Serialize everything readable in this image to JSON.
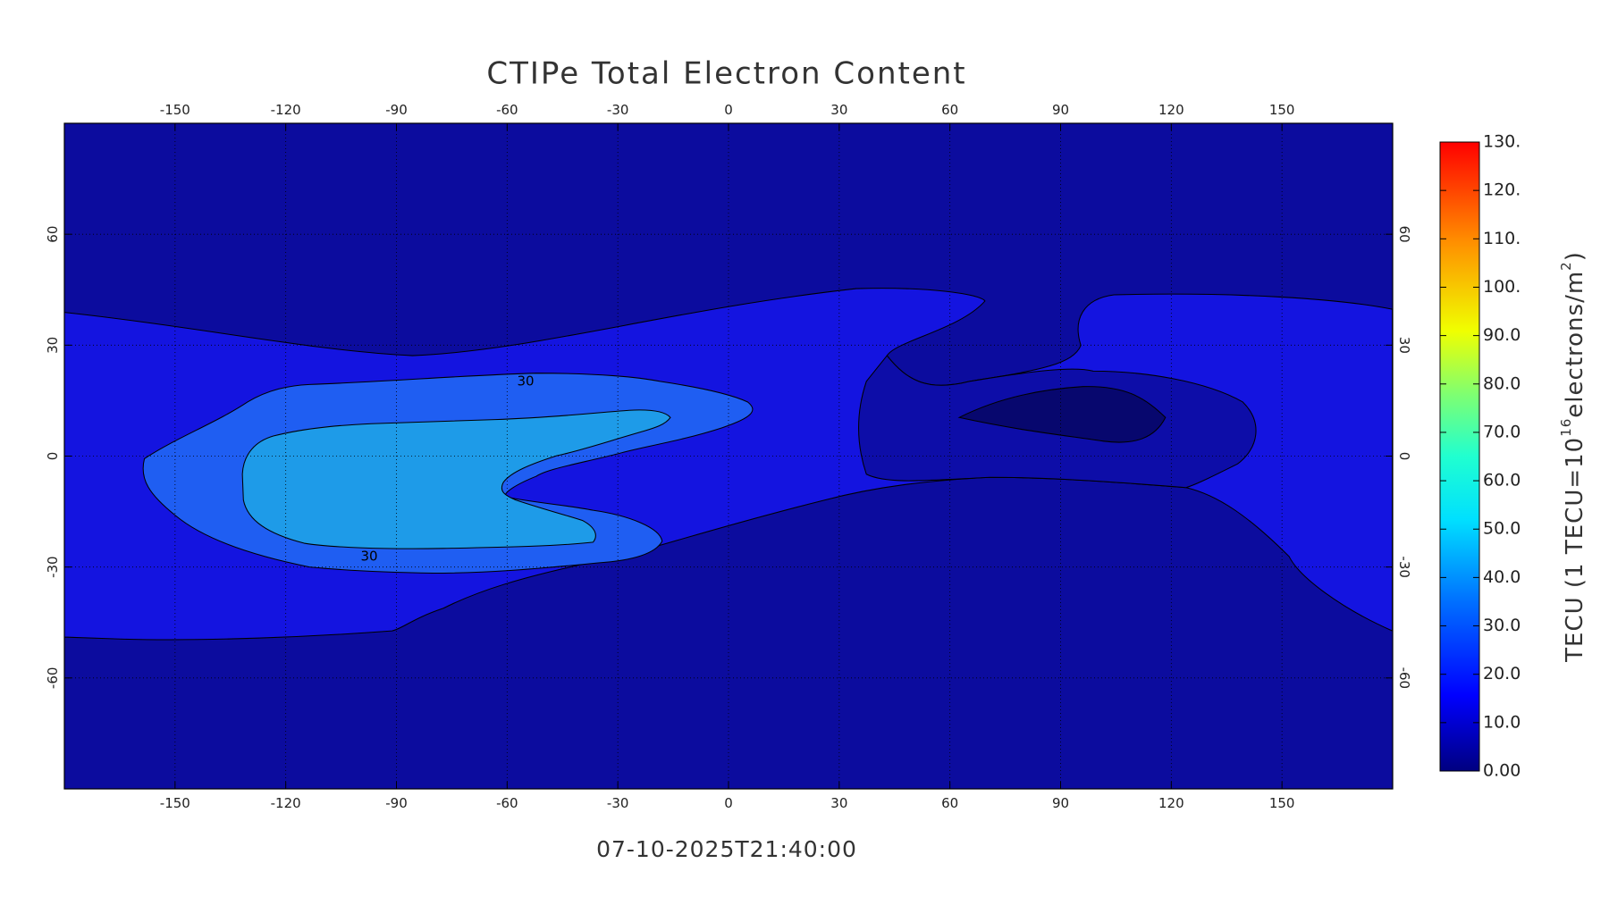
{
  "title": "CTIPe Total Electron Content",
  "timestamp": "07-10-2025T21:40:00",
  "map": {
    "type": "contour-map",
    "xlim": [
      -180,
      180
    ],
    "ylim": [
      -90,
      90
    ],
    "xticks": [
      -150,
      -120,
      -90,
      -60,
      -30,
      0,
      30,
      60,
      90,
      120,
      150
    ],
    "yticks": [
      -60,
      -30,
      0,
      30,
      60
    ],
    "grid": true,
    "contour_labels": [
      "30",
      "30"
    ]
  },
  "colorbar": {
    "ylim": [
      0,
      130
    ],
    "ticks": [
      {
        "value": 0,
        "label": "0.00"
      },
      {
        "value": 10,
        "label": "10.0"
      },
      {
        "value": 20,
        "label": "20.0"
      },
      {
        "value": 30,
        "label": "30.0"
      },
      {
        "value": 40,
        "label": "40.0"
      },
      {
        "value": 50,
        "label": "50.0"
      },
      {
        "value": 60,
        "label": "60.0"
      },
      {
        "value": 70,
        "label": "70.0"
      },
      {
        "value": 80,
        "label": "80.0"
      },
      {
        "value": 90,
        "label": "90.0"
      },
      {
        "value": 100,
        "label": "100."
      },
      {
        "value": 110,
        "label": "110."
      },
      {
        "value": 120,
        "label": "120."
      },
      {
        "value": 130,
        "label": "130."
      }
    ],
    "label_parts": [
      "TECU (1 TECU=10",
      "16",
      "electrons/m",
      "2",
      ")"
    ]
  }
}
